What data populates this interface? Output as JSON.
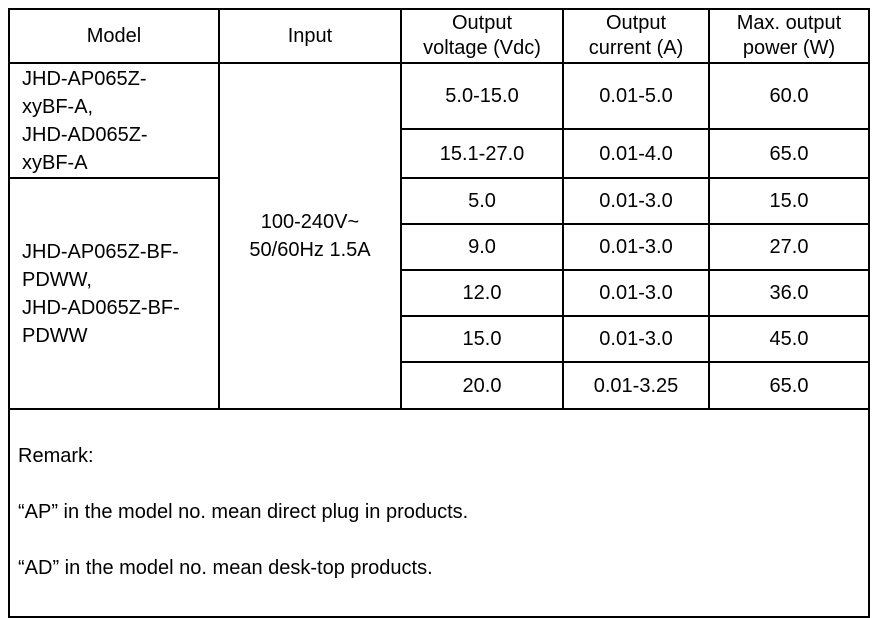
{
  "page": {
    "background_color": "#ffffff",
    "border_color": "#000000",
    "text_color": "#000000"
  },
  "table": {
    "headers": {
      "model": "Model",
      "input": "Input",
      "output_voltage": "Output\nvoltage (Vdc)",
      "output_current": "Output\ncurrent (A)",
      "max_output_power": "Max. output\npower (W)"
    },
    "model_groups": [
      "JHD-AP065Z-\nxyBF-A,\nJHD-AD065Z-\nxyBF-A",
      "JHD-AP065Z-BF-\nPDWW,\nJHD-AD065Z-BF-\nPDWW"
    ],
    "input_value": "100-240V~\n50/60Hz 1.5A",
    "rows": [
      {
        "voltage": "5.0-15.0",
        "current": "0.01-5.0",
        "power": "60.0"
      },
      {
        "voltage": "15.1-27.0",
        "current": "0.01-4.0",
        "power": "65.0"
      },
      {
        "voltage": "5.0",
        "current": "0.01-3.0",
        "power": "15.0"
      },
      {
        "voltage": "9.0",
        "current": "0.01-3.0",
        "power": "27.0"
      },
      {
        "voltage": "12.0",
        "current": "0.01-3.0",
        "power": "36.0"
      },
      {
        "voltage": "15.0",
        "current": "0.01-3.0",
        "power": "45.0"
      },
      {
        "voltage": "20.0",
        "current": "0.01-3.25",
        "power": "65.0"
      }
    ]
  },
  "remark": {
    "title": "Remark:",
    "lines": [
      "“AP” in the model no. mean direct plug in products.",
      "“AD” in the model no. mean desk-top products."
    ]
  }
}
